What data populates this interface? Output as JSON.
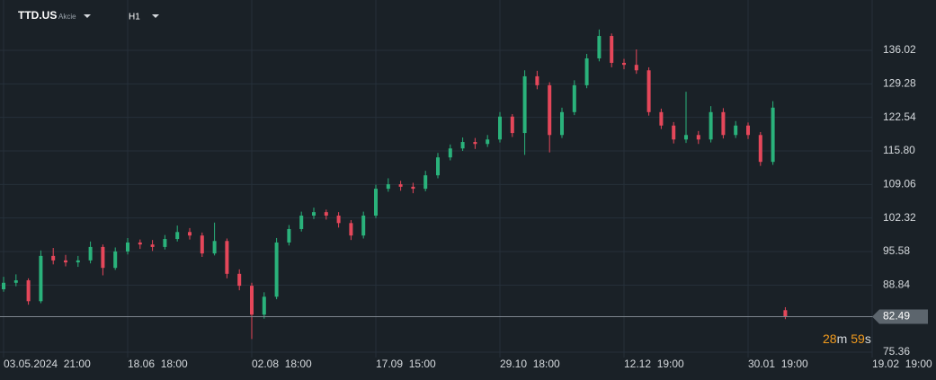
{
  "header": {
    "symbol": "TTD.US",
    "asset_class": "Akcie",
    "timeframe": "H1"
  },
  "chart_data": {
    "type": "candlestick",
    "x": [
      0,
      2,
      4,
      6,
      8,
      10,
      12,
      14,
      16,
      18,
      20,
      22,
      24,
      26,
      28,
      30,
      32,
      34,
      36,
      38,
      40,
      42,
      44,
      46,
      48,
      50,
      52,
      54,
      56,
      58,
      60,
      62,
      64,
      66,
      68,
      70,
      72,
      74,
      76,
      78,
      80,
      82,
      84,
      86,
      88,
      90,
      92,
      94,
      96,
      98,
      100,
      102,
      104,
      106,
      108,
      110,
      112,
      114,
      116,
      118,
      120,
      122,
      124,
      126
    ],
    "open": [
      88.0,
      89.3,
      89.8,
      85.6,
      94.7,
      93.8,
      93.4,
      93.8,
      96.5,
      92.3,
      95.6,
      97.4,
      97.0,
      96.5,
      98.1,
      99.5,
      98.8,
      95.2,
      97.7,
      91.1,
      88.7,
      82.9,
      86.5,
      97.4,
      100.1,
      102.8,
      103.5,
      102.8,
      101.3,
      98.8,
      102.8,
      108.2,
      109.1,
      108.6,
      108.2,
      110.9,
      114.5,
      116.3,
      117.6,
      117.2,
      118.1,
      122.7,
      119.4,
      130.8,
      129.0,
      119.0,
      123.6,
      129.0,
      134.4,
      138.9,
      133.5,
      133.1,
      132.0,
      123.6,
      120.9,
      118.1,
      119.0,
      118.1,
      123.6,
      119.0,
      120.9,
      119.0,
      113.6,
      83.8
    ],
    "high": [
      90.5,
      91.0,
      90.2,
      95.8,
      96.3,
      94.9,
      94.7,
      97.6,
      97.0,
      96.4,
      98.3,
      98.0,
      97.9,
      98.9,
      100.8,
      100.3,
      99.4,
      101.4,
      98.2,
      92.0,
      89.3,
      87.4,
      98.3,
      100.9,
      103.6,
      104.4,
      104.0,
      103.5,
      101.9,
      103.6,
      109.0,
      110.3,
      109.8,
      109.4,
      111.8,
      115.4,
      117.1,
      118.5,
      118.4,
      119.0,
      123.6,
      123.2,
      132.0,
      131.9,
      129.6,
      124.5,
      130.0,
      135.3,
      140.2,
      139.4,
      134.3,
      136.2,
      132.6,
      124.3,
      121.6,
      127.7,
      119.8,
      124.8,
      124.4,
      121.8,
      121.5,
      119.6,
      125.8,
      84.4
    ],
    "low": [
      87.5,
      88.6,
      84.9,
      85.2,
      93.0,
      92.6,
      92.5,
      93.2,
      90.8,
      91.9,
      95.0,
      96.1,
      95.7,
      96.0,
      97.6,
      98.0,
      94.5,
      94.8,
      90.2,
      87.8,
      78.0,
      82.1,
      86.0,
      96.8,
      99.6,
      102.1,
      102.0,
      100.4,
      97.9,
      98.2,
      102.3,
      107.6,
      107.8,
      107.3,
      107.7,
      110.3,
      113.9,
      115.8,
      116.2,
      116.6,
      117.5,
      118.6,
      115.0,
      128.2,
      115.5,
      118.4,
      123.0,
      128.4,
      133.8,
      132.6,
      132.2,
      131.3,
      122.9,
      120.2,
      117.3,
      117.4,
      117.2,
      117.5,
      118.3,
      118.4,
      118.2,
      112.8,
      113.0,
      82.0
    ],
    "close": [
      89.3,
      89.8,
      85.6,
      94.7,
      93.8,
      93.4,
      93.8,
      96.5,
      92.3,
      95.6,
      97.4,
      97.0,
      96.5,
      98.1,
      99.5,
      98.8,
      95.2,
      97.7,
      91.1,
      88.7,
      82.9,
      86.5,
      97.4,
      100.1,
      102.8,
      103.5,
      102.8,
      101.3,
      98.8,
      102.8,
      108.2,
      109.1,
      108.6,
      108.2,
      110.9,
      114.5,
      116.3,
      117.6,
      117.2,
      118.1,
      122.7,
      119.4,
      130.8,
      129.0,
      119.0,
      123.6,
      129.0,
      134.4,
      138.9,
      133.5,
      133.1,
      132.0,
      123.6,
      120.9,
      118.1,
      119.0,
      118.1,
      123.6,
      119.0,
      120.9,
      119.0,
      113.6,
      124.5,
      82.49
    ],
    "up_color": "#2ab27b",
    "down_color": "#e5475a",
    "xlim": [
      0,
      140
    ],
    "xticks": [
      {
        "value": 0,
        "label": "03.05.2024  21:00"
      },
      {
        "value": 20,
        "label": "18.06  18:00"
      },
      {
        "value": 40,
        "label": "02.08  18:00"
      },
      {
        "value": 60,
        "label": "17.09  15:00"
      },
      {
        "value": 80,
        "label": "29.10  18:00"
      },
      {
        "value": 100,
        "label": "12.12  19:00"
      },
      {
        "value": 120,
        "label": "30.01  19:00"
      },
      {
        "value": 140,
        "label": "19.02  19:00"
      }
    ],
    "ylim": [
      74.28,
      146.13
    ],
    "yticks": [
      136.02,
      129.28,
      122.54,
      {
        "value": 115.8,
        "label": "115.80"
      },
      109.06,
      102.32,
      95.58,
      88.84,
      75.36
    ],
    "grid": true,
    "current_price": 82.49,
    "countdown": {
      "minutes": 28,
      "minutes_unit": "m",
      "seconds": 59,
      "seconds_unit": "s"
    }
  }
}
